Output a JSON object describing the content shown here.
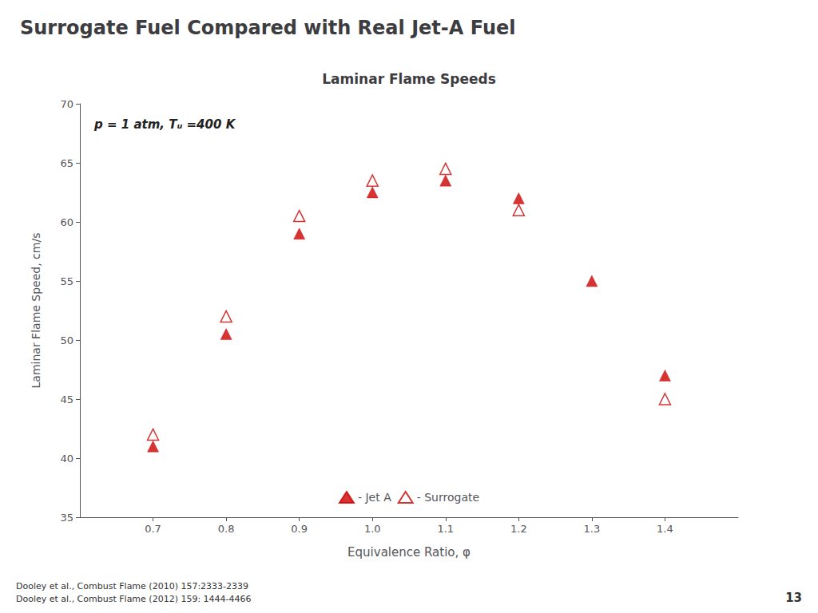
{
  "chart_data": {
    "type": "scatter",
    "title": "Surrogate Fuel Compared with Real Jet-A Fuel",
    "subtitle": "Laminar Flame Speeds",
    "xlabel": "Equivalence Ratio, φ",
    "ylabel": "Laminar Flame Speed, cm/s",
    "annotations": [
      "p = 1 atm, Tᵤ =400 K",
      "Dooley et al., Combust Flame (2010) 157:2333-2339",
      "Dooley et al., Combust Flame (2012) 159: 1444-4466",
      "13"
    ],
    "series": [
      {
        "name": "- Jet A",
        "color": "#cc0000",
        "marker": "triangle",
        "x": [
          0.7,
          0.8,
          0.9,
          1.0,
          1.1,
          1.2,
          1.3,
          1.4
        ],
        "values": [
          41.0,
          50.5,
          59.0,
          62.5,
          63.5,
          62.0,
          55.0,
          47.0
        ]
      },
      {
        "name": "- Surrogate",
        "color": "#cc0000",
        "marker": "open triangle",
        "x": [
          0.7,
          0.8,
          0.9,
          1.0,
          1.1,
          1.2,
          1.4
        ],
        "values": [
          42.0,
          52.0,
          60.5,
          63.5,
          64.5,
          61.0,
          45.0
        ]
      }
    ],
    "xlim": [
      0.6,
      1.5
    ],
    "ylim": [
      35,
      70
    ],
    "xticks": [
      0.7,
      0.8,
      0.9,
      {
        "value": 1.0,
        "label": "1.0"
      },
      1.1,
      1.2,
      1.3,
      1.4
    ],
    "yticks": [
      35,
      40,
      45,
      50,
      55,
      60,
      65,
      70
    ],
    "grid": false,
    "legend": "bottom"
  }
}
